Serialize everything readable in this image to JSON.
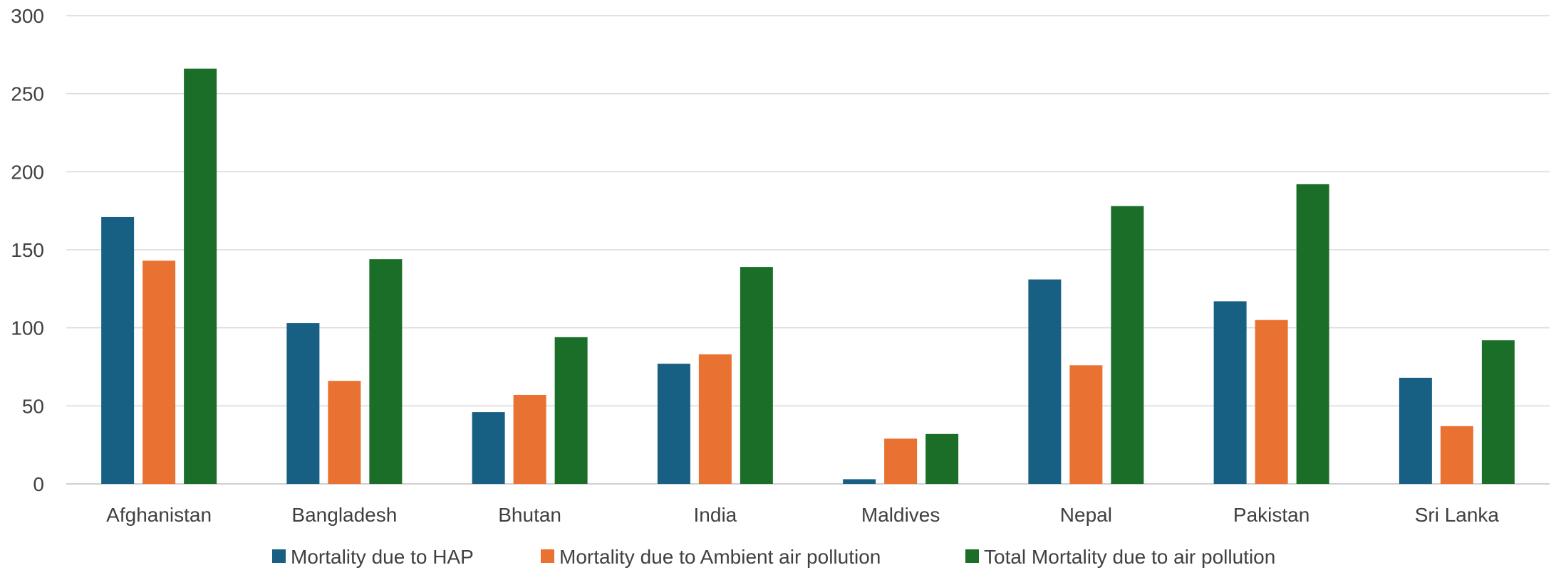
{
  "chart_data": {
    "type": "bar",
    "title": "",
    "xlabel": "",
    "ylabel": "",
    "ylim": [
      0,
      300
    ],
    "yticks": [
      0,
      50,
      100,
      150,
      200,
      250,
      300
    ],
    "grid": true,
    "legend_position": "bottom",
    "categories": [
      "Afghanistan",
      "Bangladesh",
      "Bhutan",
      "India",
      "Maldives",
      "Nepal",
      "Pakistan",
      "Sri Lanka"
    ],
    "series": [
      {
        "name": "Mortality due to HAP",
        "color": "#185f84",
        "values": [
          171,
          103,
          46,
          77,
          3,
          131,
          117,
          68
        ]
      },
      {
        "name": "Mortality due to Ambient air pollution",
        "color": "#e97132",
        "values": [
          143,
          66,
          57,
          83,
          29,
          76,
          105,
          37
        ]
      },
      {
        "name": "Total Mortality due to air pollution",
        "color": "#1b6e28",
        "values": [
          266,
          144,
          94,
          139,
          32,
          178,
          192,
          92
        ]
      }
    ]
  }
}
